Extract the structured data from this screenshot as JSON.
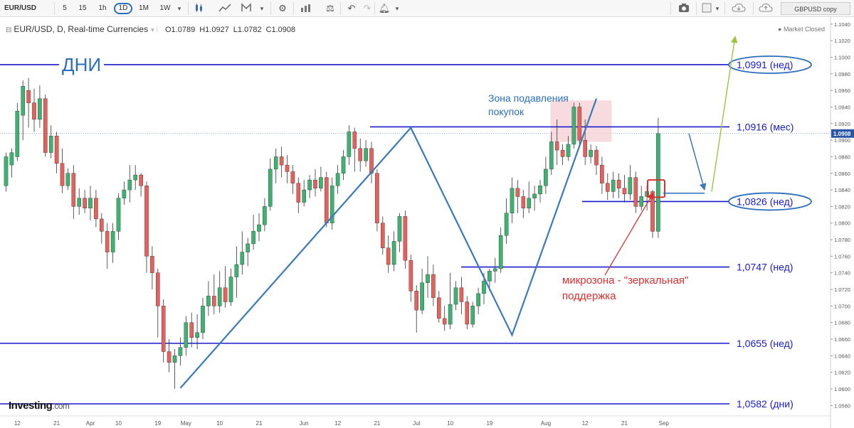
{
  "toolbar": {
    "symbol": "EUR/USD",
    "timeframes": [
      "5",
      "15",
      "1h",
      "1D",
      "1M",
      "1W"
    ],
    "active_timeframe": "1D",
    "copy_label": "GBPUSD copy"
  },
  "header": {
    "title": "EUR/USD, D, Real-time Currencies",
    "open": "O1.0789",
    "high": "H1.0927",
    "low": "L1.0782",
    "close": "C1.0908",
    "market_status": "Market Closed"
  },
  "logo": {
    "brand": "Investing",
    "suffix": ".com"
  },
  "colors": {
    "up": "#3cb371",
    "down": "#e8605c",
    "level_line": "#1a1acd",
    "trend_line": "#3a7ab8",
    "annotation_blue": "#2a6ebd",
    "annotation_red": "#d93030",
    "forecast_arrow": "#9bc53d",
    "zone": "#f6cfd4"
  },
  "annotations": {
    "days_label": "ДНИ",
    "zone_label_1": "Зона подавления",
    "zone_label_2": "покупок",
    "micro_label_1": "микрозона - \"зеркальная\"",
    "micro_label_2": "поддержка"
  },
  "chart_data": {
    "type": "candlestick",
    "y_range": [
      1.057,
      1.1045
    ],
    "x_labels": [
      {
        "label": "12",
        "bar": 2
      },
      {
        "label": "21",
        "bar": 9
      },
      {
        "label": "Apr",
        "bar": 15
      },
      {
        "label": "10",
        "bar": 20
      },
      {
        "label": "19",
        "bar": 27
      },
      {
        "label": "May",
        "bar": 32
      },
      {
        "label": "10",
        "bar": 38
      },
      {
        "label": "21",
        "bar": 45
      },
      {
        "label": "Jun",
        "bar": 53
      },
      {
        "label": "12",
        "bar": 59
      },
      {
        "label": "21",
        "bar": 66
      },
      {
        "label": "Jul",
        "bar": 73
      },
      {
        "label": "10",
        "bar": 79
      },
      {
        "label": "19",
        "bar": 86
      },
      {
        "label": "Aug",
        "bar": 96
      },
      {
        "label": "12",
        "bar": 103
      },
      {
        "label": "21",
        "bar": 110
      },
      {
        "label": "Sep",
        "bar": 117
      }
    ],
    "y_ticks": [
      1.058,
      1.06,
      1.062,
      1.064,
      1.066,
      1.068,
      1.07,
      1.072,
      1.074,
      1.076,
      1.078,
      1.08,
      1.082,
      1.084,
      1.086,
      1.088,
      1.09,
      1.092,
      1.094,
      1.096,
      1.098,
      1.1,
      1.102,
      1.104
    ],
    "current_price": 1.0908,
    "current_price_label": "1.0908",
    "candles": [
      [
        1.0845,
        1.088,
        1.0838,
        1.0885
      ],
      [
        1.087,
        1.0885,
        1.0855,
        1.089
      ],
      [
        1.088,
        1.0935,
        1.0875,
        1.0945
      ],
      [
        1.093,
        1.0965,
        1.09,
        1.0972
      ],
      [
        1.096,
        1.0945,
        1.0915,
        1.0975
      ],
      [
        1.0945,
        1.0925,
        1.091,
        1.0962
      ],
      [
        1.0925,
        1.095,
        1.0915,
        1.0966
      ],
      [
        1.095,
        1.0885,
        1.088,
        1.0955
      ],
      [
        1.0885,
        1.0905,
        1.0878,
        1.0918
      ],
      [
        1.0905,
        1.0872,
        1.086,
        1.091
      ],
      [
        1.0872,
        1.0845,
        1.0836,
        1.089
      ],
      [
        1.0845,
        1.086,
        1.084,
        1.0866
      ],
      [
        1.086,
        1.082,
        1.0805,
        1.087
      ],
      [
        1.082,
        1.083,
        1.081,
        1.0842
      ],
      [
        1.083,
        1.0818,
        1.0812,
        1.084
      ],
      [
        1.0818,
        1.083,
        1.0803,
        1.0845
      ],
      [
        1.083,
        1.0805,
        1.0795,
        1.084
      ],
      [
        1.0805,
        1.079,
        1.0775,
        1.0812
      ],
      [
        1.079,
        1.0765,
        1.0745,
        1.08
      ],
      [
        1.0765,
        1.079,
        1.0752,
        1.08
      ],
      [
        1.079,
        1.083,
        1.078,
        1.0836
      ],
      [
        1.083,
        1.084,
        1.0822,
        1.085
      ],
      [
        1.084,
        1.0852,
        1.0825,
        1.087
      ],
      [
        1.0852,
        1.0858,
        1.084,
        1.087
      ],
      [
        1.0858,
        1.0845,
        1.0832,
        1.086
      ],
      [
        1.0845,
        1.076,
        1.074,
        1.085
      ],
      [
        1.076,
        1.074,
        1.072,
        1.0772
      ],
      [
        1.074,
        1.07,
        1.0662,
        1.0745
      ],
      [
        1.07,
        1.0645,
        1.0632,
        1.0708
      ],
      [
        1.0645,
        1.0632,
        1.062,
        1.066
      ],
      [
        1.0632,
        1.064,
        1.06,
        1.0648
      ],
      [
        1.064,
        1.065,
        1.0628,
        1.0662
      ],
      [
        1.065,
        1.068,
        1.064,
        1.0688
      ],
      [
        1.068,
        1.0662,
        1.065,
        1.0692
      ],
      [
        1.0662,
        1.0668,
        1.0648,
        1.069
      ],
      [
        1.0668,
        1.07,
        1.066,
        1.071
      ],
      [
        1.07,
        1.0712,
        1.0688,
        1.073
      ],
      [
        1.0712,
        1.07,
        1.069,
        1.0738
      ],
      [
        1.07,
        1.0722,
        1.0692,
        1.0742
      ],
      [
        1.0722,
        1.0705,
        1.0698,
        1.0748
      ],
      [
        1.0705,
        1.0735,
        1.07,
        1.0745
      ],
      [
        1.0735,
        1.075,
        1.071,
        1.0772
      ],
      [
        1.075,
        1.0765,
        1.0738,
        1.079
      ],
      [
        1.0765,
        1.0775,
        1.0748,
        1.0782
      ],
      [
        1.0775,
        1.079,
        1.0768,
        1.081
      ],
      [
        1.079,
        1.0798,
        1.0778,
        1.0812
      ],
      [
        1.0798,
        1.082,
        1.079,
        1.083
      ],
      [
        1.082,
        1.0865,
        1.0815,
        1.0878
      ],
      [
        1.0865,
        1.088,
        1.0848,
        1.089
      ],
      [
        1.088,
        1.087,
        1.0855,
        1.0892
      ],
      [
        1.087,
        1.0862,
        1.0848,
        1.0882
      ],
      [
        1.0862,
        1.0848,
        1.0835,
        1.087
      ],
      [
        1.0848,
        1.0825,
        1.0812,
        1.0855
      ],
      [
        1.0825,
        1.084,
        1.082,
        1.0852
      ],
      [
        1.084,
        1.0852,
        1.083,
        1.0858
      ],
      [
        1.0852,
        1.0842,
        1.0832,
        1.0865
      ],
      [
        1.0842,
        1.0855,
        1.0838,
        1.0868
      ],
      [
        1.0855,
        1.08,
        1.0795,
        1.0862
      ],
      [
        1.08,
        1.0845,
        1.0792,
        1.0855
      ],
      [
        1.0845,
        1.086,
        1.0835,
        1.087
      ],
      [
        1.086,
        1.088,
        1.0852,
        1.0888
      ],
      [
        1.088,
        1.091,
        1.087,
        1.0918
      ],
      [
        1.091,
        1.089,
        1.0862,
        1.0915
      ],
      [
        1.089,
        1.0875,
        1.0862,
        1.0902
      ],
      [
        1.0875,
        1.089,
        1.0868,
        1.09
      ],
      [
        1.089,
        1.086,
        1.0848,
        1.0898
      ],
      [
        1.086,
        1.08,
        1.079,
        1.0865
      ],
      [
        1.08,
        1.077,
        1.0762,
        1.0808
      ],
      [
        1.077,
        1.075,
        1.074,
        1.0785
      ],
      [
        1.075,
        1.0778,
        1.0742,
        1.079
      ],
      [
        1.0778,
        1.0808,
        1.0765,
        1.0812
      ],
      [
        1.0808,
        1.0755,
        1.0745,
        1.0815
      ],
      [
        1.0755,
        1.0718,
        1.0705,
        1.0762
      ],
      [
        1.0718,
        1.0695,
        1.0668,
        1.0725
      ],
      [
        1.0695,
        1.0728,
        1.069,
        1.0745
      ],
      [
        1.0728,
        1.0738,
        1.071,
        1.076
      ],
      [
        1.0738,
        1.071,
        1.07,
        1.075
      ],
      [
        1.071,
        1.0685,
        1.068,
        1.0718
      ],
      [
        1.0685,
        1.0678,
        1.067,
        1.07
      ],
      [
        1.0678,
        1.0702,
        1.0672,
        1.074
      ],
      [
        1.0702,
        1.0722,
        1.0695,
        1.073
      ],
      [
        1.0722,
        1.0705,
        1.069,
        1.0735
      ],
      [
        1.0705,
        1.0678,
        1.0672,
        1.0712
      ],
      [
        1.0678,
        1.07,
        1.0674,
        1.0705
      ],
      [
        1.07,
        1.0715,
        1.069,
        1.0722
      ],
      [
        1.0715,
        1.073,
        1.0702,
        1.074
      ],
      [
        1.073,
        1.0742,
        1.0718,
        1.0745
      ],
      [
        1.0742,
        1.0745,
        1.0728,
        1.0758
      ],
      [
        1.0745,
        1.0785,
        1.074,
        1.0795
      ],
      [
        1.0785,
        1.0812,
        1.0775,
        1.083
      ],
      [
        1.0812,
        1.0842,
        1.08,
        1.0855
      ],
      [
        1.0842,
        1.0832,
        1.0812,
        1.0852
      ],
      [
        1.0832,
        1.0818,
        1.0806,
        1.084
      ],
      [
        1.0818,
        1.083,
        1.0812,
        1.085
      ],
      [
        1.083,
        1.0835,
        1.0815,
        1.0845
      ],
      [
        1.0835,
        1.0845,
        1.0825,
        1.0852
      ],
      [
        1.0845,
        1.0865,
        1.0835,
        1.088
      ],
      [
        1.0865,
        1.0898,
        1.0858,
        1.091
      ],
      [
        1.0898,
        1.0888,
        1.087,
        1.0925
      ],
      [
        1.0888,
        1.088,
        1.087,
        1.0895
      ],
      [
        1.088,
        1.0895,
        1.0875,
        1.0905
      ],
      [
        1.0895,
        1.094,
        1.089,
        1.0945
      ],
      [
        1.094,
        1.09,
        1.0892,
        1.0945
      ],
      [
        1.09,
        1.088,
        1.087,
        1.0925
      ],
      [
        1.088,
        1.0888,
        1.0872,
        1.0895
      ],
      [
        1.0888,
        1.087,
        1.0858,
        1.0893
      ],
      [
        1.087,
        1.0848,
        1.0835,
        1.088
      ],
      [
        1.0848,
        1.0838,
        1.0828,
        1.086
      ],
      [
        1.0838,
        1.0852,
        1.083,
        1.0862
      ],
      [
        1.0852,
        1.0842,
        1.083,
        1.086
      ],
      [
        1.0842,
        1.0835,
        1.0825,
        1.0858
      ],
      [
        1.0835,
        1.0855,
        1.0828,
        1.087
      ],
      [
        1.0855,
        1.082,
        1.0812,
        1.0862
      ],
      [
        1.082,
        1.0832,
        1.0815,
        1.0845
      ],
      [
        1.0832,
        1.0838,
        1.0815,
        1.0845
      ],
      [
        1.0838,
        1.079,
        1.0782,
        1.084
      ],
      [
        1.079,
        1.0908,
        1.0782,
        1.0927
      ]
    ],
    "levels": [
      {
        "price": 1.0991,
        "label": "1,0991 (нед)",
        "circled": true
      },
      {
        "price": 1.0916,
        "label": "1,0916 (мес)",
        "circled": false
      },
      {
        "price": 1.0826,
        "label": "1,0826 (нед)",
        "circled": true
      },
      {
        "price": 1.0747,
        "label": "1,0747 (нед)",
        "circled": false
      },
      {
        "price": 1.0655,
        "label": "1,0655 (нед)",
        "circled": false
      },
      {
        "price": 1.0582,
        "label": "1,0582 (дни)",
        "circled": false
      }
    ]
  }
}
